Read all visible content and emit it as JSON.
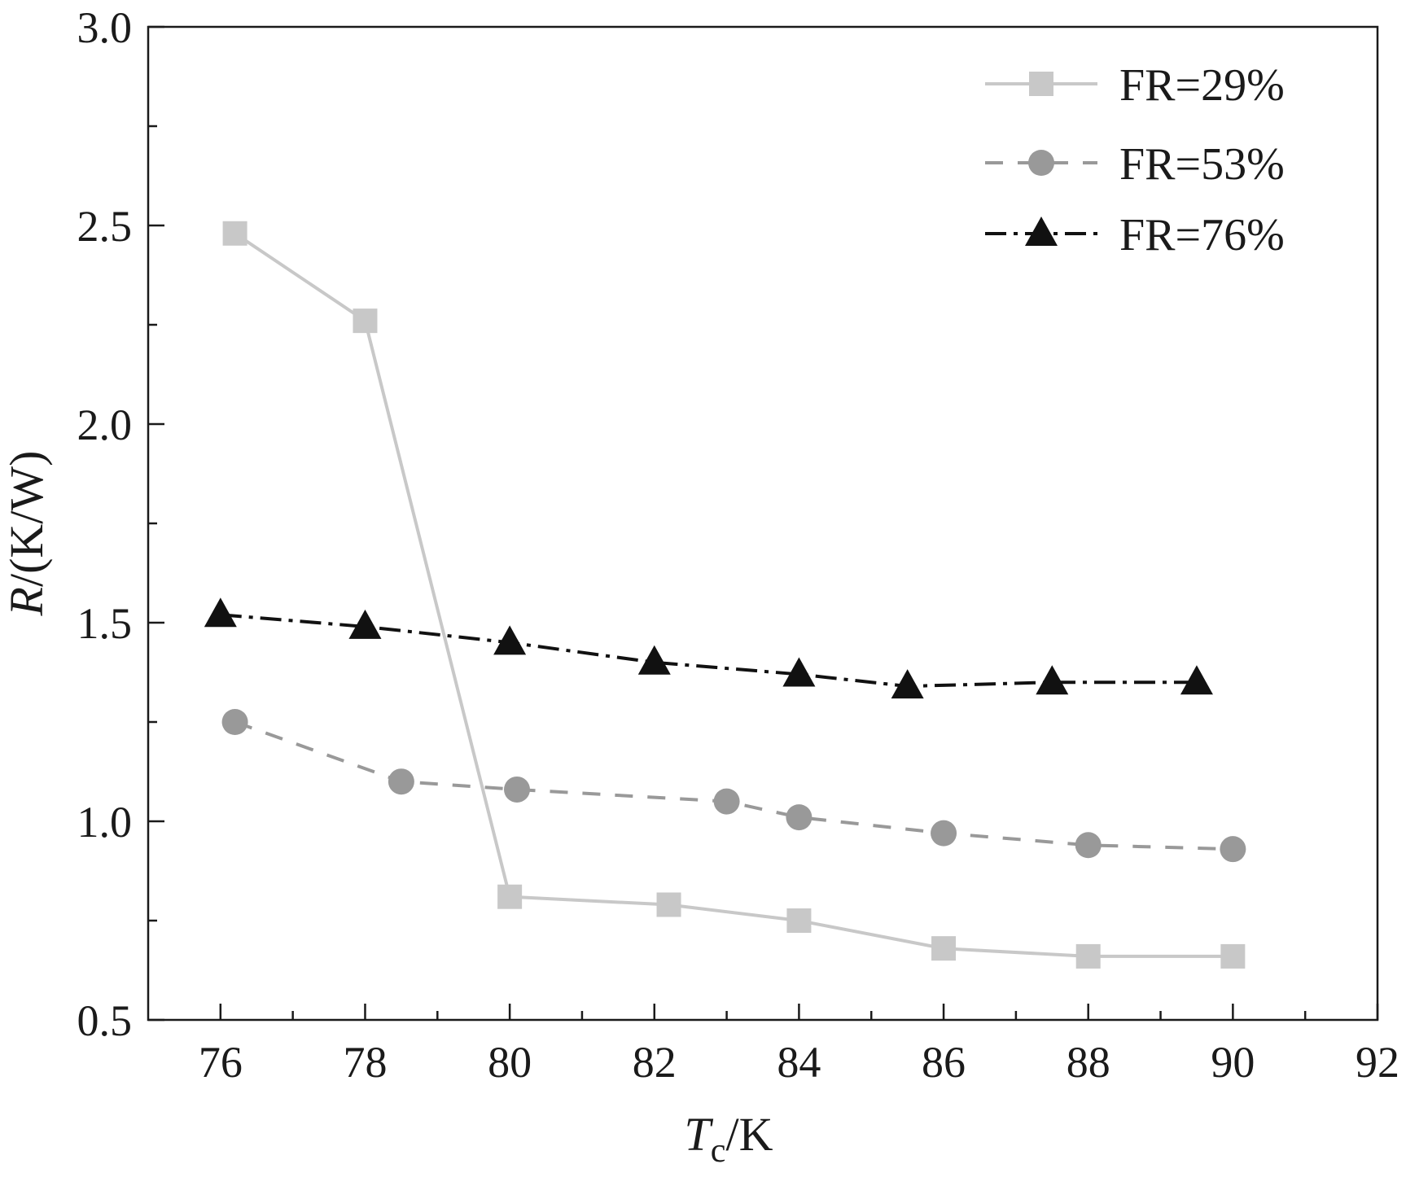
{
  "chart_data": {
    "type": "line",
    "title": "",
    "xlabel": {
      "symbol": "T",
      "subscript": "c",
      "unit": "/K"
    },
    "ylabel": {
      "symbol": "R",
      "unit": "/(K/W)"
    },
    "xlim": [
      75,
      92
    ],
    "ylim": [
      0.5,
      3.0
    ],
    "x_ticks": [
      76,
      78,
      80,
      82,
      84,
      86,
      88,
      90,
      92
    ],
    "x_tick_labels": [
      "76",
      "78",
      "80",
      "82",
      "84",
      "86",
      "88",
      "90",
      "92"
    ],
    "x_minor_ticks": [
      77,
      79,
      81,
      83,
      85,
      87,
      89,
      91
    ],
    "y_ticks": [
      0.5,
      1.0,
      1.5,
      2.0,
      2.5,
      3.0
    ],
    "y_tick_labels": [
      "0.5",
      "1.0",
      "1.5",
      "2.0",
      "2.5",
      "3.0"
    ],
    "y_minor_ticks": [
      0.75,
      1.25,
      1.75,
      2.25,
      2.75
    ],
    "grid": false,
    "legend_position": "top-right",
    "series": [
      {
        "name": "FR=29%",
        "color": "#c8c8c8",
        "line_style": "solid",
        "marker": "square",
        "points": [
          {
            "x": 76.2,
            "y": 2.48
          },
          {
            "x": 78.0,
            "y": 2.26
          },
          {
            "x": 80.0,
            "y": 0.81
          },
          {
            "x": 82.2,
            "y": 0.79
          },
          {
            "x": 84.0,
            "y": 0.75
          },
          {
            "x": 86.0,
            "y": 0.68
          },
          {
            "x": 88.0,
            "y": 0.66
          },
          {
            "x": 90.0,
            "y": 0.66
          }
        ]
      },
      {
        "name": "FR=53%",
        "color": "#999999",
        "line_style": "dashed",
        "marker": "circle",
        "points": [
          {
            "x": 76.2,
            "y": 1.25
          },
          {
            "x": 78.5,
            "y": 1.1
          },
          {
            "x": 80.1,
            "y": 1.08
          },
          {
            "x": 83.0,
            "y": 1.05
          },
          {
            "x": 84.0,
            "y": 1.01
          },
          {
            "x": 86.0,
            "y": 0.97
          },
          {
            "x": 88.0,
            "y": 0.94
          },
          {
            "x": 90.0,
            "y": 0.93
          }
        ]
      },
      {
        "name": "FR=76%",
        "color": "#111111",
        "line_style": "dash-dot",
        "marker": "triangle",
        "points": [
          {
            "x": 76.0,
            "y": 1.52
          },
          {
            "x": 78.0,
            "y": 1.49
          },
          {
            "x": 80.0,
            "y": 1.45
          },
          {
            "x": 82.0,
            "y": 1.4
          },
          {
            "x": 84.0,
            "y": 1.37
          },
          {
            "x": 85.5,
            "y": 1.34
          },
          {
            "x": 87.5,
            "y": 1.35
          },
          {
            "x": 89.5,
            "y": 1.35
          }
        ]
      }
    ]
  }
}
